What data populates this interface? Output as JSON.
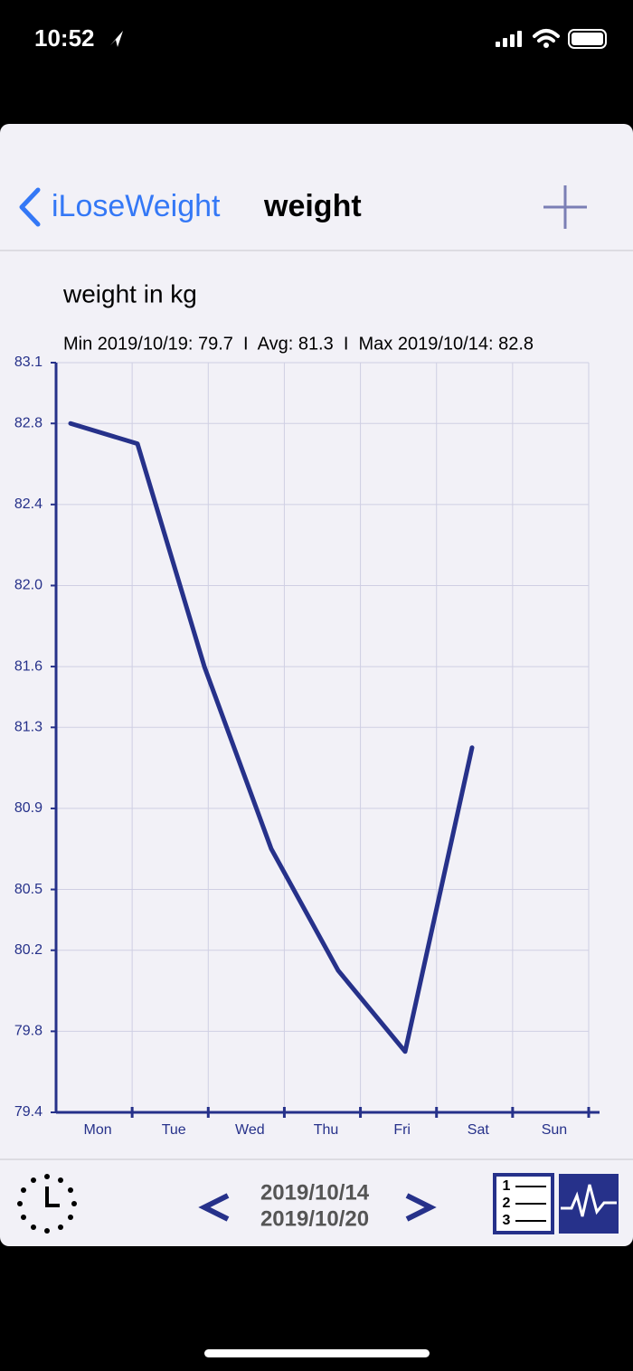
{
  "status_bar": {
    "time": "10:52"
  },
  "nav": {
    "back": "iLoseWeight",
    "title": "weight"
  },
  "chart_data": {
    "type": "line",
    "title": "weight in kg",
    "subtitle": "Min 2019/10/19: 79.7  I  Avg: 81.3  I  Max 2019/10/14: 82.8",
    "categories": [
      "Mon",
      "Tue",
      "Wed",
      "Thu",
      "Fri",
      "Sat",
      "Sun"
    ],
    "values": [
      82.8,
      82.7,
      81.6,
      80.7,
      80.1,
      79.7,
      81.2
    ],
    "color": "#26318a",
    "ylim": [
      79.4,
      83.1
    ],
    "yticks": [
      79.4,
      79.8,
      80.2,
      80.5,
      80.9,
      81.3,
      81.6,
      {
        "value": 82,
        "label": "82.0"
      },
      82.4,
      82.8,
      83.1
    ],
    "grid": true
  },
  "toolbar": {
    "date_start": "2019/10/14",
    "date_end": "2019/10/20",
    "list_icon": [
      "1",
      "2",
      "3"
    ]
  }
}
